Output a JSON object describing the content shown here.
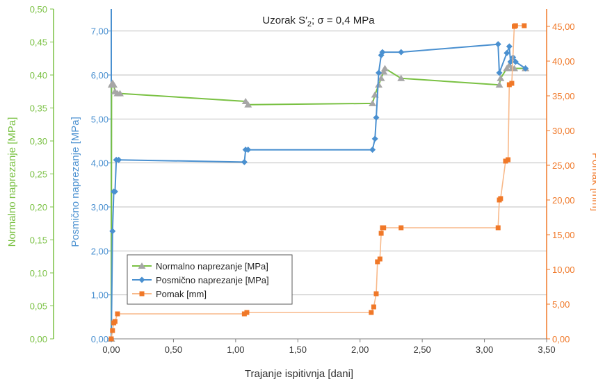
{
  "chart_data": {
    "type": "line",
    "title_main": "Uzorak S′",
    "title_sub": "2",
    "title_rest": "; σ = 0,4 MPa",
    "xlabel": "Trajanje ispitivnja [dani]",
    "ylabel_left_outer": "Normalno naprezanje [MPa]",
    "ylabel_left_inner": "Posmično naprezanje [MPa]",
    "ylabel_right": "Pomak [mm]",
    "xlim": [
      0,
      3.5
    ],
    "ylim_shear": [
      0,
      7.5
    ],
    "ylim_normal": [
      0,
      0.5
    ],
    "ylim_disp": [
      0,
      47.5
    ],
    "x_ticks": [
      "0,00",
      "0,50",
      "1,00",
      "1,50",
      "2,00",
      "2,50",
      "3,00",
      "3,50"
    ],
    "x_tick_values": [
      0,
      0.5,
      1,
      1.5,
      2,
      2.5,
      3,
      3.5
    ],
    "shear_ticks": [
      "0,00",
      "1,00",
      "2,00",
      "3,00",
      "4,00",
      "5,00",
      "6,00",
      "7,00"
    ],
    "shear_tick_values": [
      0,
      1,
      2,
      3,
      4,
      5,
      6,
      7
    ],
    "normal_ticks": [
      "0,00",
      "0,05",
      "0,10",
      "0,15",
      "0,20",
      "0,25",
      "0,30",
      "0,35",
      "0,40",
      "0,45",
      "0,50"
    ],
    "normal_tick_values": [
      0,
      0.05,
      0.1,
      0.15,
      0.2,
      0.25,
      0.3,
      0.35,
      0.4,
      0.45,
      0.5
    ],
    "disp_ticks": [
      "0,00",
      "5,00",
      "10,00",
      "15,00",
      "20,00",
      "25,00",
      "30,00",
      "35,00",
      "40,00",
      "45,00"
    ],
    "disp_tick_values": [
      0,
      5,
      10,
      15,
      20,
      25,
      30,
      35,
      40,
      45
    ],
    "grid": true,
    "legend_position": "lower-left",
    "colors": {
      "normal": "#7ac143",
      "normal_marker": "#a6a6a6",
      "shear": "#4a90d0",
      "disp": "#f07828",
      "disp_line": "#f8b98a",
      "grid": "#bfbfbf",
      "left_axis_text": "#7ac143",
      "inner_axis_text": "#4a90d0",
      "right_axis_text": "#f07828"
    },
    "series": [
      {
        "name": "Normalno naprezanje [MPa]",
        "axis": "normal",
        "marker": "triangle",
        "x": [
          0,
          0.002,
          0.01,
          0.02,
          0.03,
          0.05,
          0.07,
          1.08,
          1.1,
          2.1,
          2.12,
          2.15,
          2.17,
          2.19,
          2.2,
          2.33,
          3.12,
          3.13,
          3.18,
          3.2,
          3.22,
          3.24,
          3.33
        ],
        "values": [
          0,
          0.385,
          0.388,
          0.385,
          0.375,
          0.372,
          0.372,
          0.36,
          0.355,
          0.357,
          0.37,
          0.385,
          0.395,
          0.405,
          0.41,
          0.395,
          0.385,
          0.395,
          0.41,
          0.415,
          0.41,
          0.41,
          0.41
        ]
      },
      {
        "name": "Posmično naprezanje [MPa]",
        "axis": "shear",
        "marker": "diamond",
        "x": [
          0,
          0.01,
          0.02,
          0.03,
          0.04,
          0.06,
          1.07,
          1.08,
          1.1,
          2.1,
          2.12,
          2.13,
          2.15,
          2.17,
          2.18,
          2.33,
          3.11,
          3.12,
          3.18,
          3.2,
          3.21,
          3.23,
          3.25,
          3.33
        ],
        "values": [
          0,
          2.45,
          3.35,
          3.35,
          4.07,
          4.07,
          4.02,
          4.3,
          4.3,
          4.3,
          4.55,
          5.03,
          6.05,
          6.45,
          6.52,
          6.52,
          6.7,
          6.05,
          6.5,
          6.65,
          6.3,
          6.4,
          6.3,
          6.15
        ]
      },
      {
        "name": "Pomak [mm]",
        "axis": "disp",
        "marker": "square",
        "x": [
          0,
          0.01,
          0.02,
          0.03,
          0.05,
          1.07,
          1.09,
          2.09,
          2.11,
          2.13,
          2.14,
          2.16,
          2.17,
          2.18,
          2.19,
          2.33,
          3.11,
          3.12,
          3.13,
          3.17,
          3.19,
          3.2,
          3.22,
          3.24,
          3.25,
          3.32
        ],
        "values": [
          0,
          1.2,
          2.3,
          2.5,
          3.6,
          3.6,
          3.8,
          3.8,
          4.6,
          6.5,
          11.1,
          11.5,
          15.2,
          16.0,
          16.0,
          16.0,
          16.0,
          20.0,
          20.2,
          25.6,
          25.8,
          36.6,
          36.8,
          45.0,
          45.1,
          45.1
        ]
      }
    ]
  }
}
